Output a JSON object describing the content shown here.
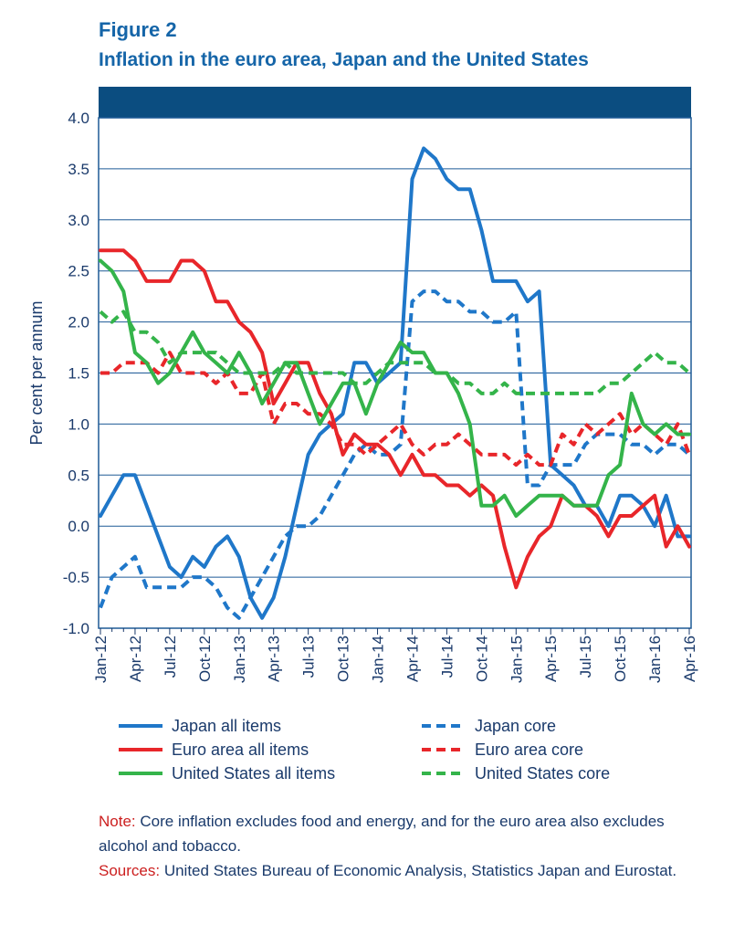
{
  "figure_label": "Figure 2",
  "figure_title": "Inflation in the euro area, Japan and the United States",
  "note_label": "Note:",
  "note_text": "Core inflation excludes food and energy, and for the euro area also excludes alcohol and tobacco.",
  "sources_label": "Sources:",
  "sources_text": "United States Bureau of Economic Analysis, Statistics Japan and Eurostat.",
  "colors": {
    "title": "#1565a8",
    "header_band": "#0b4d80",
    "japan": "#1f77c9",
    "euro": "#e8262a",
    "us": "#34b44a",
    "axis": "#1a3a6b"
  },
  "chart_data": {
    "type": "line",
    "ylabel": "Per cent per annum",
    "xlabel": "",
    "ylim": [
      -1.0,
      4.0
    ],
    "y_ticks": [
      "4.0",
      "3.5",
      "3.0",
      "2.5",
      "2.0",
      "1.5",
      "1.0",
      "0.5",
      "0.0",
      "-0.5",
      "-1.0"
    ],
    "y_tick_values": [
      4.0,
      3.5,
      3.0,
      2.5,
      2.0,
      1.5,
      1.0,
      0.5,
      0.0,
      -0.5,
      -1.0
    ],
    "x_ticks": [
      "Jan-12",
      "Apr-12",
      "Jul-12",
      "Oct-12",
      "Jan-13",
      "Apr-13",
      "Jul-13",
      "Oct-13",
      "Jan-14",
      "Apr-14",
      "Jul-14",
      "Oct-14",
      "Jan-15",
      "Apr-15",
      "Jul-15",
      "Oct-15",
      "Jan-16",
      "Apr-16"
    ],
    "x_tick_index": [
      0,
      3,
      6,
      9,
      12,
      15,
      18,
      21,
      24,
      27,
      30,
      33,
      36,
      39,
      42,
      45,
      48,
      51
    ],
    "n_points": 52,
    "grid": true,
    "series": [
      {
        "name": "Japan all items",
        "color": "#1f77c9",
        "dashed": false,
        "values": [
          0.1,
          0.3,
          0.5,
          0.5,
          0.2,
          -0.1,
          -0.4,
          -0.5,
          -0.3,
          -0.4,
          -0.2,
          -0.1,
          -0.3,
          -0.7,
          -0.9,
          -0.7,
          -0.3,
          0.2,
          0.7,
          0.9,
          1.0,
          1.1,
          1.6,
          1.6,
          1.4,
          1.5,
          1.6,
          3.4,
          3.7,
          3.6,
          3.4,
          3.3,
          3.3,
          2.9,
          2.4,
          2.4,
          2.4,
          2.2,
          2.3,
          0.6,
          0.5,
          0.4,
          0.2,
          0.2,
          0.0,
          0.3,
          0.3,
          0.2,
          0.0,
          0.3,
          -0.1,
          -0.1
        ]
      },
      {
        "name": "Japan core",
        "color": "#1f77c9",
        "dashed": true,
        "values": [
          -0.8,
          -0.5,
          -0.4,
          -0.3,
          -0.6,
          -0.6,
          -0.6,
          -0.6,
          -0.5,
          -0.5,
          -0.6,
          -0.8,
          -0.9,
          -0.7,
          -0.5,
          -0.3,
          -0.1,
          0.0,
          0.0,
          0.1,
          0.3,
          0.5,
          0.7,
          0.8,
          0.7,
          0.7,
          0.8,
          2.2,
          2.3,
          2.3,
          2.2,
          2.2,
          2.1,
          2.1,
          2.0,
          2.0,
          2.1,
          0.4,
          0.4,
          0.6,
          0.6,
          0.6,
          0.8,
          0.9,
          0.9,
          0.9,
          0.8,
          0.8,
          0.7,
          0.8,
          0.8,
          0.7
        ]
      },
      {
        "name": "Euro area all items",
        "color": "#e8262a",
        "dashed": false,
        "values": [
          2.7,
          2.7,
          2.7,
          2.6,
          2.4,
          2.4,
          2.4,
          2.6,
          2.6,
          2.5,
          2.2,
          2.2,
          2.0,
          1.9,
          1.7,
          1.2,
          1.4,
          1.6,
          1.6,
          1.3,
          1.1,
          0.7,
          0.9,
          0.8,
          0.8,
          0.7,
          0.5,
          0.7,
          0.5,
          0.5,
          0.4,
          0.4,
          0.3,
          0.4,
          0.3,
          -0.2,
          -0.6,
          -0.3,
          -0.1,
          0.0,
          0.3,
          0.2,
          0.2,
          0.1,
          -0.1,
          0.1,
          0.1,
          0.2,
          0.3,
          -0.2,
          0.0,
          -0.2
        ]
      },
      {
        "name": "Euro area core",
        "color": "#e8262a",
        "dashed": true,
        "values": [
          1.5,
          1.5,
          1.6,
          1.6,
          1.6,
          1.5,
          1.7,
          1.5,
          1.5,
          1.5,
          1.4,
          1.5,
          1.3,
          1.3,
          1.5,
          1.0,
          1.2,
          1.2,
          1.1,
          1.1,
          1.0,
          0.8,
          0.8,
          0.7,
          0.8,
          0.9,
          1.0,
          0.8,
          0.7,
          0.8,
          0.8,
          0.9,
          0.8,
          0.7,
          0.7,
          0.7,
          0.6,
          0.7,
          0.6,
          0.6,
          0.9,
          0.8,
          1.0,
          0.9,
          1.0,
          1.1,
          0.9,
          1.0,
          0.9,
          0.8,
          1.0,
          0.7
        ]
      },
      {
        "name": "United States all items",
        "color": "#34b44a",
        "dashed": false,
        "values": [
          2.6,
          2.5,
          2.3,
          1.7,
          1.6,
          1.4,
          1.5,
          1.7,
          1.9,
          1.7,
          1.6,
          1.5,
          1.7,
          1.5,
          1.2,
          1.4,
          1.6,
          1.6,
          1.3,
          1.0,
          1.2,
          1.4,
          1.4,
          1.1,
          1.4,
          1.6,
          1.8,
          1.7,
          1.7,
          1.5,
          1.5,
          1.3,
          1.0,
          0.2,
          0.2,
          0.3,
          0.1,
          0.2,
          0.3,
          0.3,
          0.3,
          0.2,
          0.2,
          0.2,
          0.5,
          0.6,
          1.3,
          1.0,
          0.9,
          1.0,
          0.9,
          0.9
        ]
      },
      {
        "name": "United States core",
        "color": "#34b44a",
        "dashed": true,
        "values": [
          2.1,
          2.0,
          2.1,
          1.9,
          1.9,
          1.8,
          1.6,
          1.7,
          1.7,
          1.7,
          1.7,
          1.6,
          1.5,
          1.5,
          1.5,
          1.5,
          1.6,
          1.5,
          1.5,
          1.5,
          1.5,
          1.5,
          1.4,
          1.4,
          1.5,
          1.6,
          1.6,
          1.6,
          1.6,
          1.5,
          1.5,
          1.4,
          1.4,
          1.3,
          1.3,
          1.4,
          1.3,
          1.3,
          1.3,
          1.3,
          1.3,
          1.3,
          1.3,
          1.3,
          1.4,
          1.4,
          1.5,
          1.6,
          1.7,
          1.6,
          1.6,
          1.5
        ]
      }
    ],
    "legend_position": "bottom"
  }
}
